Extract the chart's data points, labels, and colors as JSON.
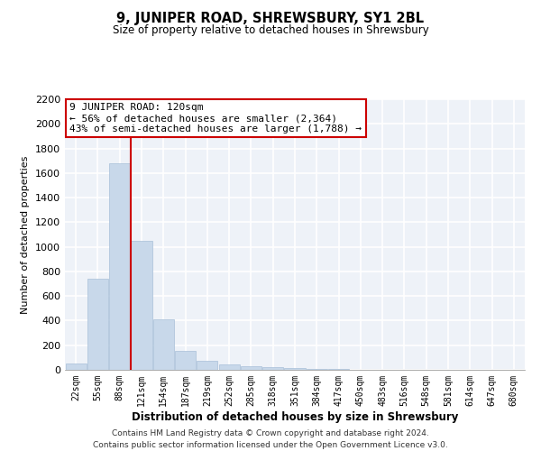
{
  "title": "9, JUNIPER ROAD, SHREWSBURY, SY1 2BL",
  "subtitle": "Size of property relative to detached houses in Shrewsbury",
  "xlabel": "Distribution of detached houses by size in Shrewsbury",
  "ylabel": "Number of detached properties",
  "bar_color": "#c8d8ea",
  "bar_edge_color": "#a8c0d8",
  "background_color": "#eef2f8",
  "grid_color": "#ffffff",
  "annotation_box_color": "#cc0000",
  "annotation_text": "9 JUNIPER ROAD: 120sqm\n← 56% of detached houses are smaller (2,364)\n43% of semi-detached houses are larger (1,788) →",
  "property_line_color": "#cc0000",
  "categories": [
    "22sqm",
    "55sqm",
    "88sqm",
    "121sqm",
    "154sqm",
    "187sqm",
    "219sqm",
    "252sqm",
    "285sqm",
    "318sqm",
    "351sqm",
    "384sqm",
    "417sqm",
    "450sqm",
    "483sqm",
    "516sqm",
    "548sqm",
    "581sqm",
    "614sqm",
    "647sqm",
    "680sqm"
  ],
  "values": [
    55,
    740,
    1680,
    1050,
    410,
    155,
    75,
    45,
    30,
    20,
    15,
    10,
    7,
    3,
    2,
    1,
    1,
    0,
    0,
    0,
    0
  ],
  "ylim": [
    0,
    2200
  ],
  "yticks": [
    0,
    200,
    400,
    600,
    800,
    1000,
    1200,
    1400,
    1600,
    1800,
    2000,
    2200
  ],
  "footnote1": "Contains HM Land Registry data © Crown copyright and database right 2024.",
  "footnote2": "Contains public sector information licensed under the Open Government Licence v3.0."
}
